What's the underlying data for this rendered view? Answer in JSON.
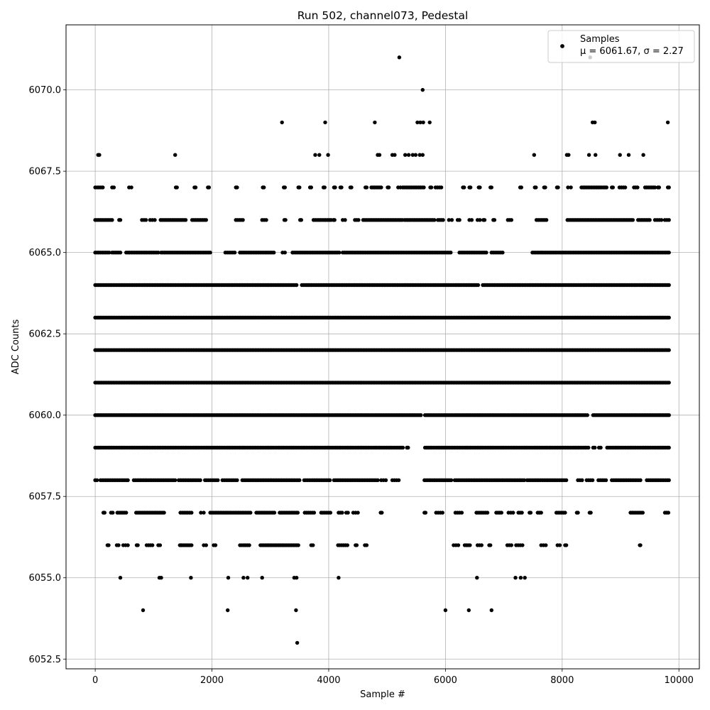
{
  "chart_data": {
    "type": "scatter",
    "title": "Run 502, channel073, Pedestal",
    "xlabel": "Sample #",
    "ylabel": "ADC Counts",
    "xlim": [
      -500,
      10350
    ],
    "ylim": [
      6052.2,
      6072.0
    ],
    "x_ticks": [
      0,
      2000,
      4000,
      6000,
      8000,
      10000
    ],
    "x_tick_labels": [
      "0",
      "2000",
      "4000",
      "6000",
      "8000",
      "10000"
    ],
    "y_ticks": [
      6052.5,
      6055.0,
      6057.5,
      6060.0,
      6062.5,
      6065.0,
      6067.5,
      6070.0
    ],
    "y_tick_labels": [
      "6052.5",
      "6055.0",
      "6057.5",
      "6060.0",
      "6062.5",
      "6065.0",
      "6067.5",
      "6070.0"
    ],
    "grid": true,
    "legend": {
      "placement": "top-right",
      "label": "Samples",
      "stats": "μ = 6061.67, σ = 2.27"
    },
    "marker_color": "#000000",
    "sample_range": [
      0,
      9830
    ],
    "series": [
      {
        "name": "Samples",
        "points": [
          [
            5210,
            6071
          ],
          [
            8480,
            6071
          ],
          [
            5610,
            6070
          ],
          [
            3200,
            6069
          ],
          [
            3940,
            6069
          ],
          [
            4790,
            6069
          ],
          [
            5520,
            6069
          ],
          [
            5570,
            6069
          ],
          [
            5620,
            6069
          ],
          [
            5730,
            6069
          ],
          [
            8520,
            6069
          ],
          [
            8560,
            6069
          ],
          [
            9810,
            6069
          ],
          [
            50,
            6068
          ],
          [
            70,
            6068
          ],
          [
            1370,
            6068
          ],
          [
            3770,
            6068
          ],
          [
            3840,
            6068
          ],
          [
            3990,
            6068
          ],
          [
            4840,
            6068
          ],
          [
            4870,
            6068
          ],
          [
            5090,
            6068
          ],
          [
            5130,
            6068
          ],
          [
            5310,
            6068
          ],
          [
            5370,
            6068
          ],
          [
            5440,
            6068
          ],
          [
            5490,
            6068
          ],
          [
            5560,
            6068
          ],
          [
            5610,
            6068
          ],
          [
            7520,
            6068
          ],
          [
            8080,
            6068
          ],
          [
            8110,
            6068
          ],
          [
            8460,
            6068
          ],
          [
            8570,
            6068
          ],
          [
            8990,
            6068
          ],
          [
            9140,
            6068
          ],
          [
            9390,
            6068
          ],
          [
            3460,
            6053
          ],
          [
            820,
            6054
          ],
          [
            2270,
            6054
          ],
          [
            3440,
            6054
          ],
          [
            6000,
            6054
          ],
          [
            6400,
            6054
          ],
          [
            6790,
            6054
          ],
          [
            430,
            6055
          ],
          [
            1100,
            6055
          ],
          [
            1130,
            6055
          ],
          [
            1640,
            6055
          ],
          [
            2280,
            6055
          ],
          [
            2540,
            6055
          ],
          [
            2610,
            6055
          ],
          [
            2860,
            6055
          ],
          [
            3410,
            6055
          ],
          [
            3450,
            6055
          ],
          [
            4170,
            6055
          ],
          [
            6540,
            6055
          ],
          [
            7200,
            6055
          ],
          [
            7290,
            6055
          ],
          [
            7360,
            6055
          ]
        ]
      }
    ],
    "bands": [
      {
        "y": 6056,
        "segments": [
          [
            210,
            230
          ],
          [
            370,
            400
          ],
          [
            480,
            560
          ],
          [
            710,
            730
          ],
          [
            880,
            980
          ],
          [
            1080,
            1110
          ],
          [
            1450,
            1650
          ],
          [
            1860,
            1900
          ],
          [
            2030,
            2060
          ],
          [
            2480,
            2640
          ],
          [
            2830,
            3480
          ],
          [
            3700,
            3730
          ],
          [
            4160,
            4320
          ],
          [
            4460,
            4480
          ],
          [
            4620,
            4650
          ],
          [
            6140,
            6220
          ],
          [
            6330,
            6420
          ],
          [
            6550,
            6620
          ],
          [
            6750,
            6770
          ],
          [
            7060,
            7130
          ],
          [
            7210,
            7320
          ],
          [
            7640,
            7720
          ],
          [
            7920,
            7960
          ],
          [
            8050,
            8070
          ],
          [
            9330,
            9340
          ]
        ]
      },
      {
        "y": 6057,
        "segments": [
          [
            140,
            160
          ],
          [
            270,
            300
          ],
          [
            380,
            530
          ],
          [
            700,
            1180
          ],
          [
            1460,
            1650
          ],
          [
            1810,
            1860
          ],
          [
            1970,
            2660
          ],
          [
            2760,
            3070
          ],
          [
            3160,
            3470
          ],
          [
            3590,
            3750
          ],
          [
            3870,
            4030
          ],
          [
            4170,
            4230
          ],
          [
            4300,
            4330
          ],
          [
            4420,
            4500
          ],
          [
            4890,
            4910
          ],
          [
            5640,
            5660
          ],
          [
            5840,
            5950
          ],
          [
            6170,
            6280
          ],
          [
            6530,
            6720
          ],
          [
            6870,
            6960
          ],
          [
            7080,
            7160
          ],
          [
            7250,
            7310
          ],
          [
            7440,
            7460
          ],
          [
            7580,
            7640
          ],
          [
            7900,
            8050
          ],
          [
            8250,
            8270
          ],
          [
            8470,
            8490
          ],
          [
            9170,
            9380
          ],
          [
            9760,
            9820
          ]
        ]
      },
      {
        "y": 6058,
        "segments": [
          [
            0,
            30
          ],
          [
            90,
            560
          ],
          [
            660,
            1370
          ],
          [
            1430,
            1800
          ],
          [
            1880,
            2100
          ],
          [
            2180,
            2430
          ],
          [
            2520,
            3500
          ],
          [
            3580,
            4020
          ],
          [
            4090,
            4840
          ],
          [
            4900,
            4980
          ],
          [
            5090,
            5200
          ],
          [
            5640,
            6100
          ],
          [
            6160,
            7350
          ],
          [
            7400,
            8070
          ],
          [
            8270,
            8340
          ],
          [
            8420,
            8520
          ],
          [
            8620,
            8750
          ],
          [
            8850,
            9340
          ],
          [
            9450,
            9830
          ]
        ]
      },
      {
        "y": 6059,
        "segments": [
          [
            0,
            5270
          ],
          [
            5340,
            5360
          ],
          [
            5650,
            8450
          ],
          [
            8530,
            8560
          ],
          [
            8630,
            8660
          ],
          [
            8770,
            9830
          ]
        ]
      },
      {
        "y": 6060,
        "segments": [
          [
            0,
            5580
          ],
          [
            5650,
            8430
          ],
          [
            8530,
            9830
          ]
        ]
      },
      {
        "y": 6061,
        "segments": [
          [
            0,
            9830
          ]
        ]
      },
      {
        "y": 6062,
        "segments": [
          [
            0,
            9830
          ]
        ]
      },
      {
        "y": 6063,
        "segments": [
          [
            0,
            9830
          ]
        ]
      },
      {
        "y": 6064,
        "segments": [
          [
            0,
            3450
          ],
          [
            3540,
            6560
          ],
          [
            6640,
            9830
          ]
        ]
      },
      {
        "y": 6065,
        "segments": [
          [
            0,
            240
          ],
          [
            290,
            430
          ],
          [
            530,
            1080
          ],
          [
            1130,
            1970
          ],
          [
            2230,
            2390
          ],
          [
            2480,
            3060
          ],
          [
            3210,
            3250
          ],
          [
            3380,
            4180
          ],
          [
            4240,
            6090
          ],
          [
            6240,
            6700
          ],
          [
            6790,
            6980
          ],
          [
            7490,
            9830
          ]
        ]
      },
      {
        "y": 6066,
        "segments": [
          [
            0,
            290
          ],
          [
            410,
            430
          ],
          [
            800,
            870
          ],
          [
            940,
            1020
          ],
          [
            1120,
            1550
          ],
          [
            1660,
            1900
          ],
          [
            2410,
            2530
          ],
          [
            2860,
            2930
          ],
          [
            3240,
            3260
          ],
          [
            3510,
            3530
          ],
          [
            3740,
            4040
          ],
          [
            4080,
            4100
          ],
          [
            4240,
            4280
          ],
          [
            4450,
            4510
          ],
          [
            4590,
            5260
          ],
          [
            5300,
            5810
          ],
          [
            5870,
            5960
          ],
          [
            6060,
            6110
          ],
          [
            6210,
            6240
          ],
          [
            6410,
            6450
          ],
          [
            6550,
            6590
          ],
          [
            6650,
            6670
          ],
          [
            6820,
            6840
          ],
          [
            7070,
            7130
          ],
          [
            7560,
            7730
          ],
          [
            8090,
            9210
          ],
          [
            9300,
            9500
          ],
          [
            9590,
            9700
          ],
          [
            9760,
            9830
          ]
        ]
      },
      {
        "y": 6067,
        "segments": [
          [
            0,
            130
          ],
          [
            290,
            320
          ],
          [
            580,
            620
          ],
          [
            1380,
            1400
          ],
          [
            1700,
            1720
          ],
          [
            1930,
            1950
          ],
          [
            2410,
            2430
          ],
          [
            2870,
            2890
          ],
          [
            3230,
            3250
          ],
          [
            3480,
            3500
          ],
          [
            3680,
            3700
          ],
          [
            3910,
            3930
          ],
          [
            4090,
            4110
          ],
          [
            4200,
            4220
          ],
          [
            4370,
            4390
          ],
          [
            4630,
            4650
          ],
          [
            4730,
            4900
          ],
          [
            5010,
            5030
          ],
          [
            5190,
            5230
          ],
          [
            5270,
            5630
          ],
          [
            5740,
            5760
          ],
          [
            5830,
            5930
          ],
          [
            6300,
            6320
          ],
          [
            6410,
            6430
          ],
          [
            6570,
            6590
          ],
          [
            6770,
            6790
          ],
          [
            7280,
            7300
          ],
          [
            7530,
            7550
          ],
          [
            7690,
            7710
          ],
          [
            7910,
            7930
          ],
          [
            8100,
            8150
          ],
          [
            8330,
            8760
          ],
          [
            8850,
            8870
          ],
          [
            8980,
            9080
          ],
          [
            9230,
            9290
          ],
          [
            9420,
            9590
          ],
          [
            9640,
            9660
          ],
          [
            9810,
            9830
          ]
        ]
      }
    ]
  }
}
